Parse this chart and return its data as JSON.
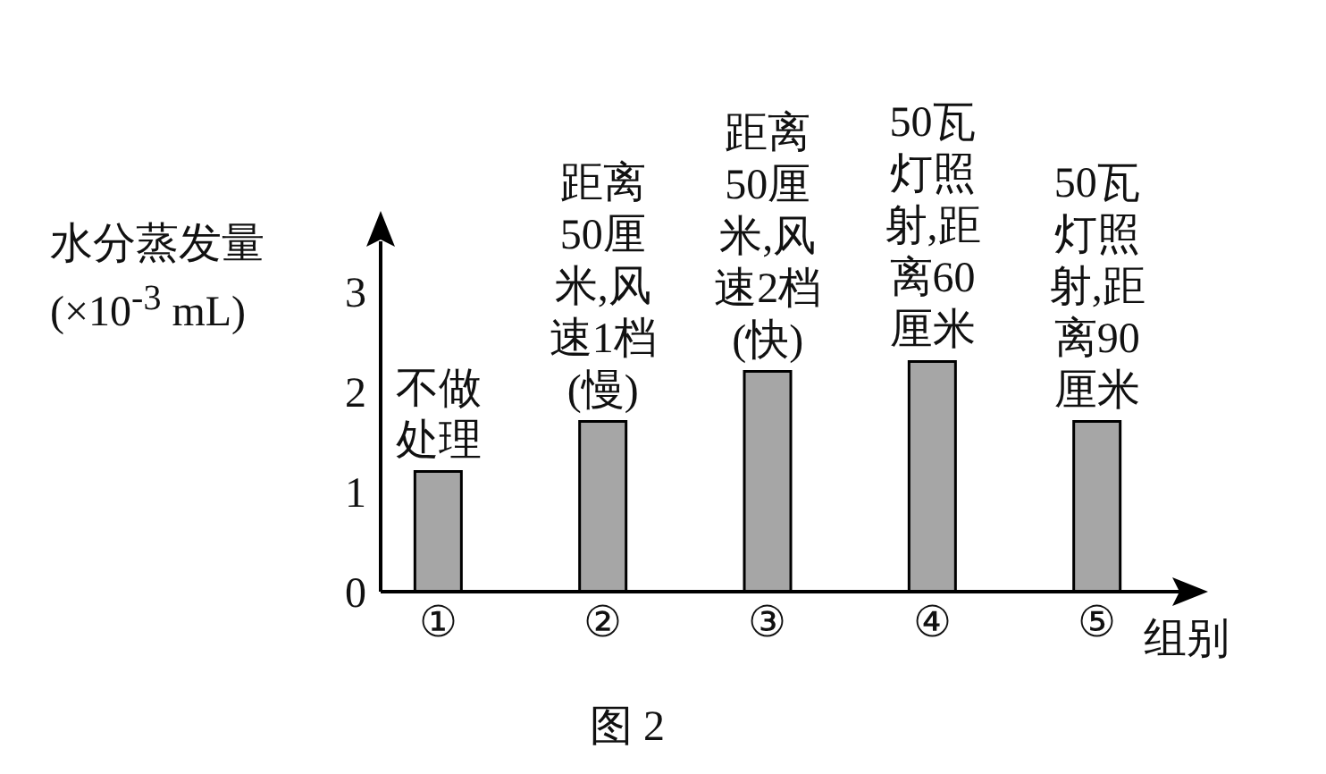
{
  "chart_data": {
    "type": "bar",
    "title": "图 2",
    "xlabel": "组别",
    "ylabel": "水分蒸发量\n(×10$^{-3}$ mL)",
    "categories": [
      "①",
      "②",
      "③",
      "④",
      "⑤"
    ],
    "values": [
      1.2,
      1.7,
      2.2,
      2.3,
      1.7
    ],
    "color": "#a6a6a6",
    "ylim": [
      0,
      3.5
    ],
    "yticks": [
      0,
      1,
      2,
      3
    ],
    "grid": false,
    "legend": false,
    "annotations": [
      {
        "text": "不做处理",
        "x": "①",
        "y": 1.2
      },
      {
        "text": "距离50厘米,风速1档(慢)",
        "x": "②",
        "y": 1.7
      },
      {
        "text": "距离50厘米,风速2档(快)",
        "x": "③",
        "y": 2.2
      },
      {
        "text": "50瓦灯照射,距离60厘米",
        "x": "④",
        "y": 2.3
      },
      {
        "text": "50瓦灯照射,距离90厘米",
        "x": "⑤",
        "y": 1.7
      }
    ]
  }
}
